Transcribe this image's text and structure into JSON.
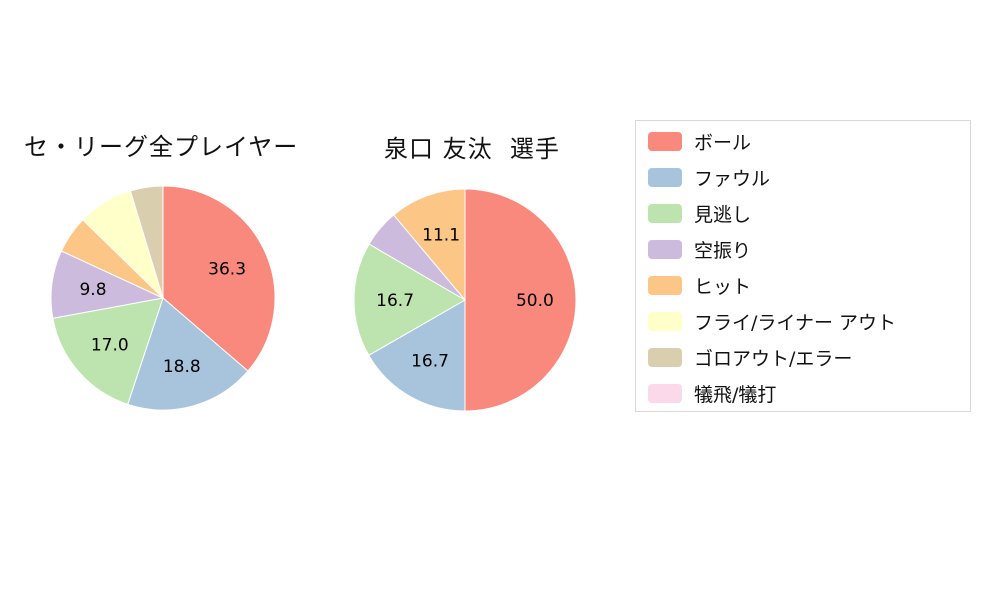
{
  "chart_data": [
    {
      "type": "pie",
      "title": "セ・リーグ全プレイヤー",
      "direction": "clockwise",
      "start_angle_deg": 0,
      "labels": [
        "ボール",
        "ファウル",
        "見逃し",
        "空振り",
        "ヒット",
        "フライ/ライナー アウト",
        "ゴロアウト/エラー"
      ],
      "values": [
        36.3,
        18.8,
        17.0,
        9.8,
        5.4,
        8.0,
        4.7
      ],
      "shown_labels": [
        "36.3",
        "18.8",
        "17.0",
        "9.8",
        "",
        "",
        ""
      ]
    },
    {
      "type": "pie",
      "title": "泉口 友汰  選手",
      "direction": "clockwise",
      "start_angle_deg": 0,
      "labels": [
        "ボール",
        "ファウル",
        "見逃し",
        "空振り",
        "ヒット"
      ],
      "values": [
        50.0,
        16.7,
        16.7,
        5.5,
        11.1
      ],
      "shown_labels": [
        "50.0",
        "16.7",
        "16.7",
        "",
        "11.1"
      ]
    }
  ],
  "legend": {
    "items": [
      {
        "label": "ボール",
        "color": "#f9897d"
      },
      {
        "label": "ファウル",
        "color": "#a8c4dc"
      },
      {
        "label": "見逃し",
        "color": "#bde3ae"
      },
      {
        "label": "空振り",
        "color": "#ccbbdc"
      },
      {
        "label": "ヒット",
        "color": "#fcc687"
      },
      {
        "label": "フライ/ライナー アウト",
        "color": "#ffffc9"
      },
      {
        "label": "ゴロアウト/エラー",
        "color": "#d9cfae"
      },
      {
        "label": "犠飛/犠打",
        "color": "#fbd9eb"
      }
    ]
  }
}
